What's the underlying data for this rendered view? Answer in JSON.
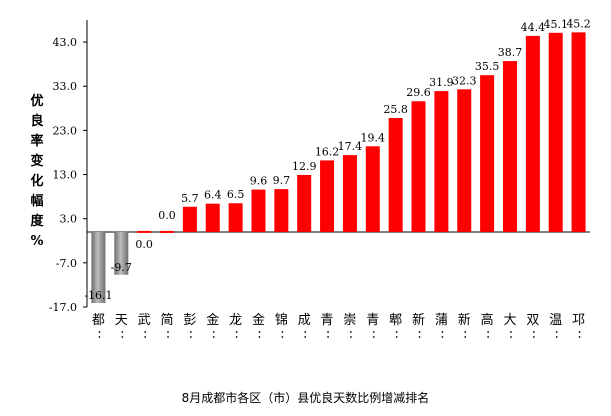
{
  "chart_data": {
    "type": "bar",
    "title": "8月成都市各区（市）县优良天数比例增减排名",
    "ylabel_chars": [
      "优",
      "良",
      "率",
      "变",
      "化",
      "幅",
      "度",
      "%"
    ],
    "ylim": [
      -17.0,
      48.0
    ],
    "yticks": [
      "43.0",
      "33.0",
      "23.0",
      "13.0",
      "3.0",
      "-7.0",
      "-17.0"
    ],
    "categories": [
      "都",
      "天",
      "武",
      "简",
      "彭",
      "金",
      "龙",
      "金",
      "锦",
      "成",
      "青",
      "崇",
      "青",
      "郫",
      "新",
      "蒲",
      "新",
      "高",
      "大",
      "双",
      "温",
      "邛"
    ],
    "values": [
      -16.1,
      -9.7,
      0.0,
      0.0,
      5.7,
      6.4,
      6.5,
      9.6,
      9.7,
      12.9,
      16.2,
      17.4,
      19.4,
      25.8,
      29.6,
      31.9,
      32.3,
      35.5,
      38.7,
      44.4,
      45.1,
      45.2
    ],
    "value_labels": [
      "-16.1",
      "-9.7",
      "0.0",
      "0.0",
      "5.7",
      "6.4",
      "6.5",
      "9.6",
      "9.7",
      "12.9",
      "16.2",
      "17.4",
      "19.4",
      "25.8",
      "29.6",
      "31.9",
      "32.3",
      "35.5",
      "38.7",
      "44.4",
      "45.1",
      "45.2"
    ],
    "colors": {
      "positive": "#ff0000",
      "negative": "#8c8c8c",
      "axis": "#000000"
    },
    "grid": false,
    "legend": "none"
  }
}
